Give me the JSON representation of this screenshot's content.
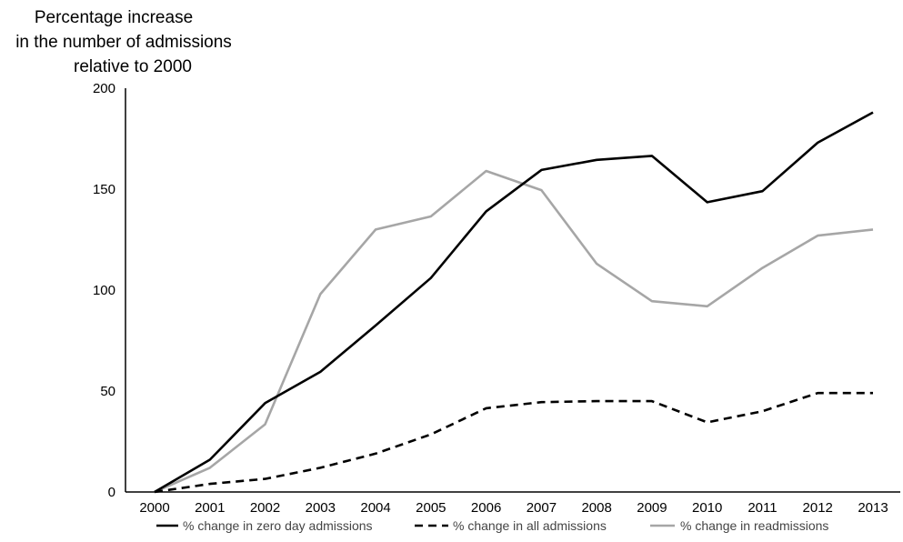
{
  "chart_data": {
    "type": "line",
    "ylabel_lines": [
      "Percentage increase",
      "in the number of admissions",
      "relative to 2000"
    ],
    "xlabel": "",
    "x": [
      "2000",
      "2001",
      "2002",
      "2003",
      "2004",
      "2005",
      "2006",
      "2007",
      "2008",
      "2009",
      "2010",
      "2011",
      "2012",
      "2013"
    ],
    "ylim": [
      0,
      200
    ],
    "yticks": [
      "0",
      "50",
      "100",
      "150",
      "200"
    ],
    "grid": false,
    "legend_position": "bottom",
    "series": [
      {
        "name": "% change in zero day admissions",
        "values": [
          0,
          16,
          44,
          59.5,
          82.5,
          106,
          139,
          159.5,
          164.5,
          166.5,
          143.5,
          149,
          173,
          188
        ],
        "color": "#000000",
        "style": "solid"
      },
      {
        "name": "% change in all admissions",
        "values": [
          0,
          4,
          6.5,
          12,
          19,
          28.5,
          41.5,
          44.5,
          45,
          45,
          34.5,
          40,
          49,
          49
        ],
        "color": "#000000",
        "style": "dashed"
      },
      {
        "name": "% change in readmissions",
        "values": [
          0,
          12,
          33.5,
          98,
          130,
          136.5,
          159,
          149.5,
          113,
          94.5,
          92,
          111,
          127,
          130
        ],
        "color": "#a6a6a6",
        "style": "solid"
      }
    ]
  }
}
